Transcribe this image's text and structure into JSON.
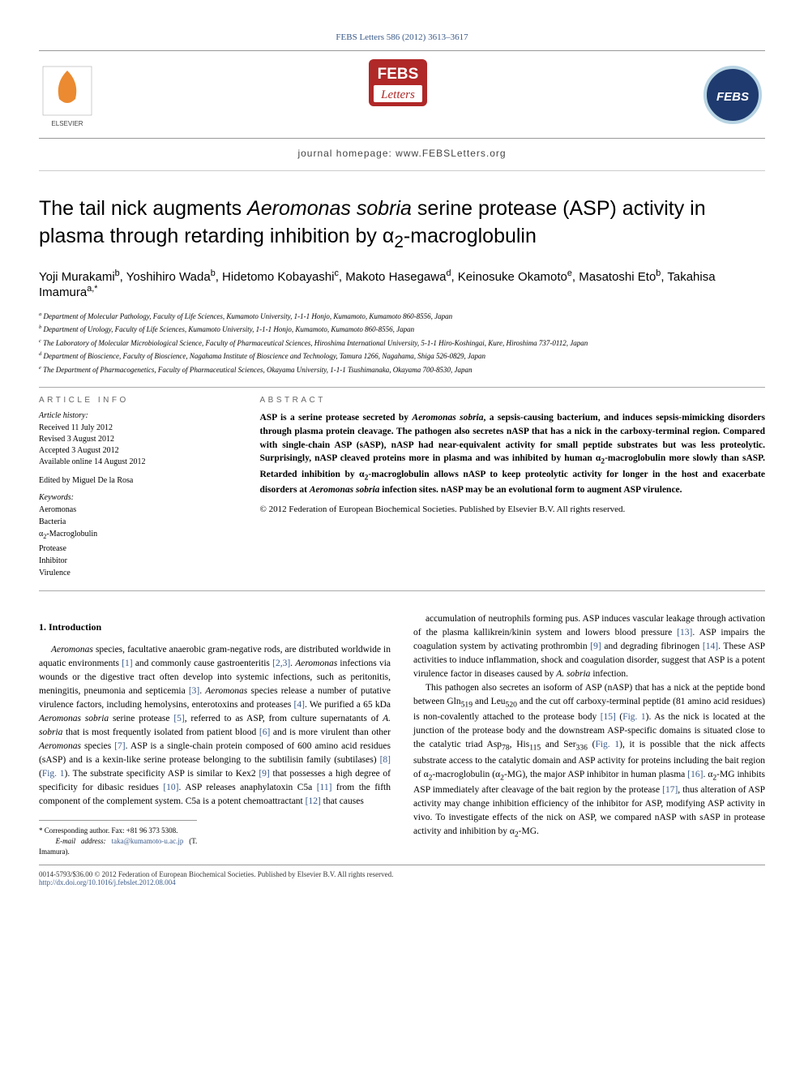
{
  "topline": "FEBS Letters 586 (2012) 3613–3617",
  "homepage": "journal homepage: www.FEBSLetters.org",
  "title": "The tail nick augments <i>Aeromonas sobria</i> serine protease (ASP) activity in plasma through retarding inhibition by α<sub>2</sub>-macroglobulin",
  "authors": "Yoji Murakami<sup>b</sup>, Yoshihiro Wada<sup>b</sup>, Hidetomo Kobayashi<sup>c</sup>, Makoto Hasegawa<sup>d</sup>, Keinosuke Okamoto<sup>e</sup>, Masatoshi Eto<sup>b</sup>, Takahisa Imamura<sup>a,*</sup>",
  "affiliations": [
    "<sup>a</sup> Department of Molecular Pathology, Faculty of Life Sciences, Kumamoto University, 1-1-1 Honjo, Kumamoto, Kumamoto 860-8556, Japan",
    "<sup>b</sup> Department of Urology, Faculty of Life Sciences, Kumamoto University, 1-1-1 Honjo, Kumamoto, Kumamoto 860-8556, Japan",
    "<sup>c</sup> The Laboratory of Molecular Microbiological Science, Faculty of Pharmaceutical Sciences, Hiroshima International University, 5-1-1 Hiro-Koshingai, Kure, Hiroshima 737-0112, Japan",
    "<sup>d</sup> Department of Bioscience, Faculty of Bioscience, Nagahama Institute of Bioscience and Technology, Tamura 1266, Nagahama, Shiga 526-0829, Japan",
    "<sup>e</sup> The Department of Pharmacogenetics, Faculty of Pharmaceutical Sciences, Okayama University, 1-1-1 Tsushimanaka, Okayama 700-8530, Japan"
  ],
  "article_info_head": "ARTICLE INFO",
  "history_head": "Article history:",
  "history": [
    "Received 11 July 2012",
    "Revised 3 August 2012",
    "Accepted 3 August 2012",
    "Available online 14 August 2012"
  ],
  "edited": "Edited by Miguel De la Rosa",
  "keywords_head": "Keywords:",
  "keywords": [
    "Aeromonas",
    "Bacteria",
    "α<sub>2</sub>-Macroglobulin",
    "Protease",
    "Inhibitor",
    "Virulence"
  ],
  "abstract_head": "ABSTRACT",
  "abstract": "ASP is a serine protease secreted by <i>Aeromonas sobria</i>, a sepsis-causing bacterium, and induces sepsis-mimicking disorders through plasma protein cleavage. The pathogen also secretes nASP that has a nick in the carboxy-terminal region. Compared with single-chain ASP (sASP), nASP had near-equivalent activity for small peptide substrates but was less proteolytic. Surprisingly, nASP cleaved proteins more in plasma and was inhibited by human α<sub>2</sub>-macroglobulin more slowly than sASP. Retarded inhibition by α<sub>2</sub>-macroglobulin allows nASP to keep proteolytic activity for longer in the host and exacerbate disorders at <i>Aeromonas sobria</i> infection sites. nASP may be an evolutional form to augment ASP virulence.",
  "copyright": "© 2012 Federation of European Biochemical Societies. Published by Elsevier B.V. All rights reserved.",
  "intro_head": "1. Introduction",
  "col1": "<i>Aeromonas</i> species, facultative anaerobic gram-negative rods, are distributed worldwide in aquatic environments <span class='ref'>[1]</span> and commonly cause gastroenteritis <span class='ref'>[2,3]</span>. <i>Aeromonas</i> infections via wounds or the digestive tract often develop into systemic infections, such as peritonitis, meningitis, pneumonia and septicemia <span class='ref'>[3]</span>. <i>Aeromonas</i> species release a number of putative virulence factors, including hemolysins, enterotoxins and proteases <span class='ref'>[4]</span>. We purified a 65 kDa <i>Aeromonas sobria</i> serine protease <span class='ref'>[5]</span>, referred to as ASP, from culture supernatants of <i>A. sobria</i> that is most frequently isolated from patient blood <span class='ref'>[6]</span> and is more virulent than other <i>Aeromonas</i> species <span class='ref'>[7]</span>. ASP is a single-chain protein composed of 600 amino acid residues (sASP) and is a kexin-like serine protease belonging to the subtilisin family (subtilases) <span class='ref'>[8]</span> (<span class='ref'>Fig. 1</span>). The substrate specificity ASP is similar to Kex2 <span class='ref'>[9]</span> that possesses a high degree of specificity for dibasic residues <span class='ref'>[10]</span>. ASP releases anaphylatoxin C5a <span class='ref'>[11]</span> from the fifth component of the complement system. C5a is a potent chemoattractant <span class='ref'>[12]</span> that causes",
  "col2": [
    "accumulation of neutrophils forming pus. ASP induces vascular leakage through activation of the plasma kallikrein/kinin system and lowers blood pressure <span class='ref'>[13]</span>. ASP impairs the coagulation system by activating prothrombin <span class='ref'>[9]</span> and degrading fibrinogen <span class='ref'>[14]</span>. These ASP activities to induce inflammation, shock and coagulation disorder, suggest that ASP is a potent virulence factor in diseases caused by <i>A. sobria</i> infection.",
    "This pathogen also secretes an isoform of ASP (nASP) that has a nick at the peptide bond between Gln<sub>519</sub> and Leu<sub>520</sub> and the cut off carboxy-terminal peptide (81 amino acid residues) is non-covalently attached to the protease body <span class='ref'>[15]</span> (<span class='ref'>Fig. 1</span>). As the nick is located at the junction of the protease body and the downstream ASP-specific domains is situated close to the catalytic triad Asp<sub>78</sub>, His<sub>115</sub> and Ser<sub>336</sub> (<span class='ref'>Fig. 1</span>), it is possible that the nick affects substrate access to the catalytic domain and ASP activity for proteins including the bait region of α<sub>2</sub>-macroglobulin (α<sub>2</sub>-MG), the major ASP inhibitor in human plasma <span class='ref'>[16]</span>. α<sub>2</sub>-MG inhibits ASP immediately after cleavage of the bait region by the protease <span class='ref'>[17]</span>, thus alteration of ASP activity may change inhibition efficiency of the inhibitor for ASP, modifying ASP activity in vivo. To investigate effects of the nick on ASP, we compared nASP with sASP in protease activity and inhibition by α<sub>2</sub>-MG."
  ],
  "footnote": "* Corresponding author. Fax: +81 96 373 5308.<br>&nbsp;&nbsp;&nbsp;<i>E-mail address:</i> <span class='ref'>taka@kumamoto-u.ac.jp</span> (T. Imamura).",
  "bottom_left": "0014-5793/$36.00 © 2012 Federation of European Biochemical Societies. Published by Elsevier B.V. All rights reserved.",
  "doi": "http://dx.doi.org/10.1016/j.febslet.2012.08.004",
  "logos": {
    "elsevier_tree": "#e8760c",
    "febs_red": "#b02828",
    "febs_blue": "#1e3a6e"
  }
}
